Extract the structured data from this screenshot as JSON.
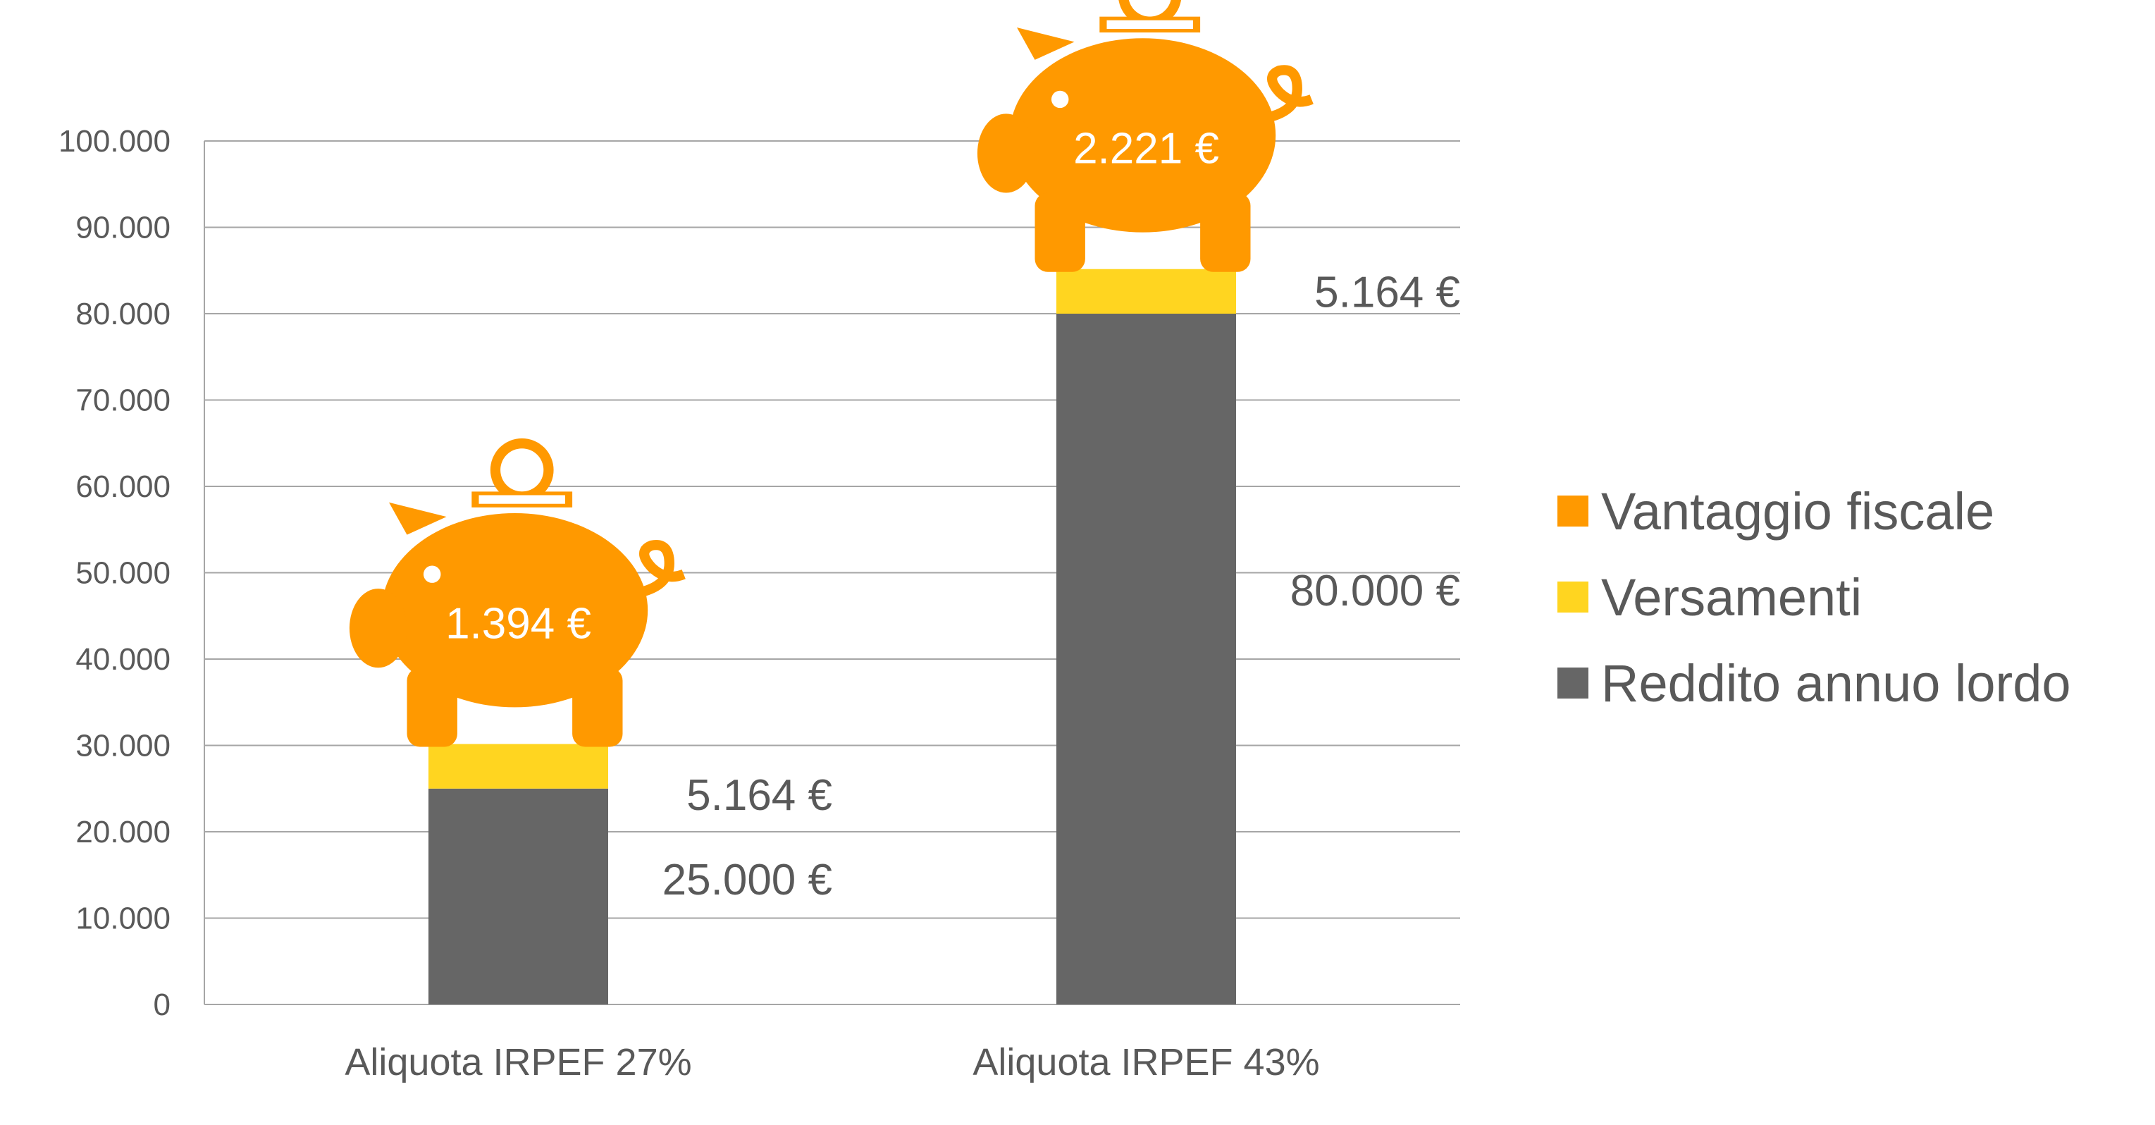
{
  "chart_data": {
    "type": "bar",
    "stacked": true,
    "categories": [
      "Aliquota IRPEF 27%",
      "Aliquota IRPEF 43%"
    ],
    "series": [
      {
        "name": "Reddito annuo lordo",
        "values": [
          25000,
          80000
        ],
        "color": "#666666",
        "labels": [
          "25.000 €",
          "80.000 €"
        ]
      },
      {
        "name": "Versamenti",
        "values": [
          5164,
          5164
        ],
        "color": "#FFD520",
        "labels": [
          "5.164 €",
          "5.164 €"
        ]
      },
      {
        "name": "Vantaggio fiscale",
        "values": [
          1394,
          2221
        ],
        "color": "#FF9900",
        "labels": [
          "1.394 €",
          "2.221 €"
        ],
        "icon": "piggy-bank-icon"
      }
    ],
    "legend_order": [
      "Vantaggio fiscale",
      "Versamenti",
      "Reddito annuo lordo"
    ],
    "ylim": [
      0,
      100000
    ],
    "yticks": [
      "0",
      "10.000",
      "20.000",
      "30.000",
      "40.000",
      "50.000",
      "60.000",
      "70.000",
      "80.000",
      "90.000",
      "100.000"
    ],
    "grid": true,
    "legend_position": "right",
    "title": "",
    "xlabel": "",
    "ylabel": ""
  }
}
